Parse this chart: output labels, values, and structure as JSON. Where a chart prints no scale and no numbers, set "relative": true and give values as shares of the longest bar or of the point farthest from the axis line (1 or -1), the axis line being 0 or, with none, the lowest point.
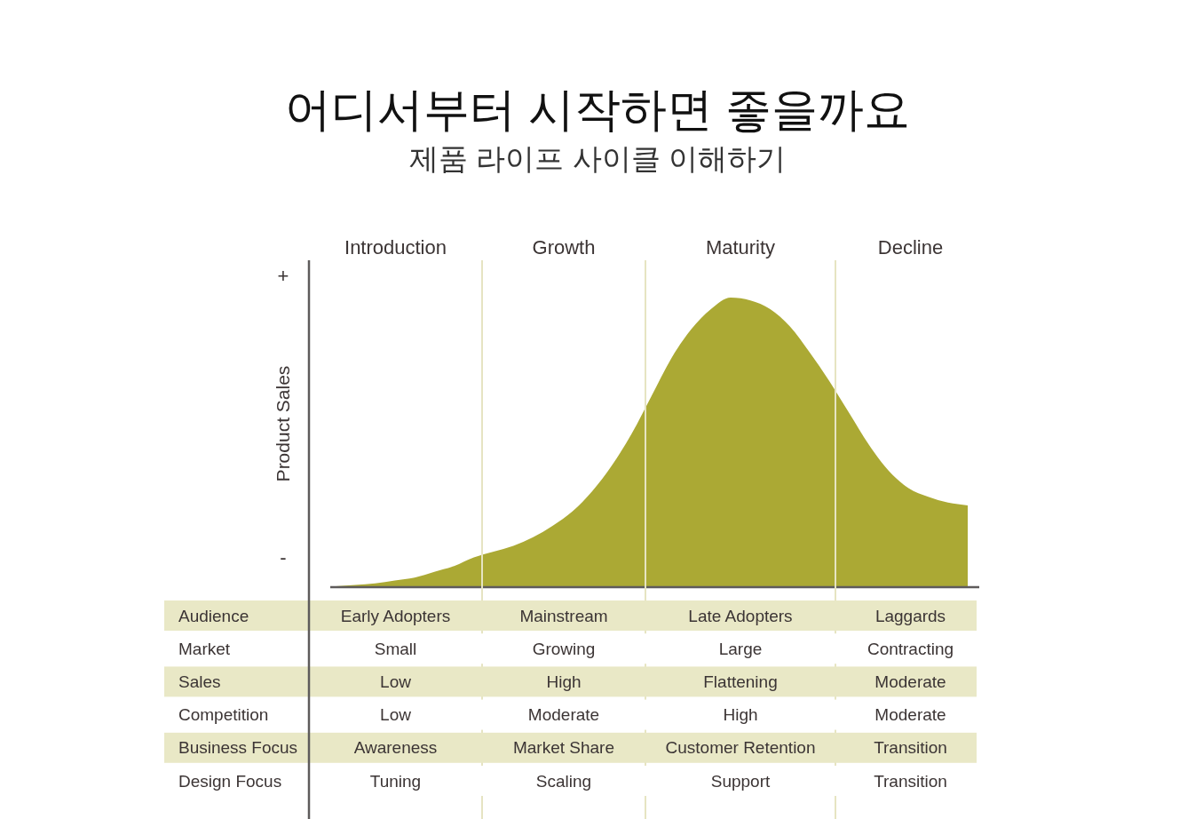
{
  "chart_data": [
    {
      "type": "area",
      "title": "어디서부터 시작하면 좋을까요",
      "subtitle": "제품 라이프 사이클 이해하기",
      "ylabel": "Product Sales",
      "categories": [
        null,
        null,
        null,
        null,
        null,
        null,
        null,
        null,
        null,
        null,
        null,
        null,
        null,
        null,
        null,
        null,
        null,
        null,
        null,
        null,
        null,
        null,
        null,
        null,
        null,
        null,
        null,
        null,
        null,
        null,
        null,
        null,
        null
      ],
      "values": [
        0,
        0.005,
        0.01,
        0.02,
        0.03,
        0.05,
        0.07,
        0.1,
        0.12,
        0.14,
        0.17,
        0.21,
        0.26,
        0.33,
        0.42,
        0.53,
        0.66,
        0.79,
        0.89,
        0.96,
        1,
        0.99,
        0.96,
        0.9,
        0.81,
        0.71,
        0.6,
        0.49,
        0.4,
        0.34,
        0.31,
        0.29,
        0.28
      ],
      "color": "#aba934",
      "relative": true,
      "annotations": [
        "+",
        "-"
      ]
    },
    {
      "type": "other",
      "categories": [
        "Introduction",
        "Growth",
        "Maturity",
        "Decline"
      ],
      "y_categories": [
        "Audience",
        "Market",
        "Sales",
        "Competition",
        "Business Focus",
        "Design Focus"
      ],
      "cell_labels": [
        [
          "Early Adopters",
          "Mainstream",
          "Late Adopters",
          "Laggards"
        ],
        [
          "Small",
          "Growing",
          "Large",
          "Contracting"
        ],
        [
          "Low",
          "High",
          "Flattening",
          "Moderate"
        ],
        [
          "Low",
          "Moderate",
          "High",
          "Moderate"
        ],
        [
          "Awareness",
          "Market Share",
          "Customer Retention",
          "Transition"
        ],
        [
          "Tuning",
          "Scaling",
          "Support",
          "Transition"
        ]
      ],
      "colors": [
        "#e9e8c6",
        "#ffffff",
        "#e9e8c6",
        "#ffffff",
        "#e9e8c6",
        "#ffffff"
      ]
    }
  ]
}
